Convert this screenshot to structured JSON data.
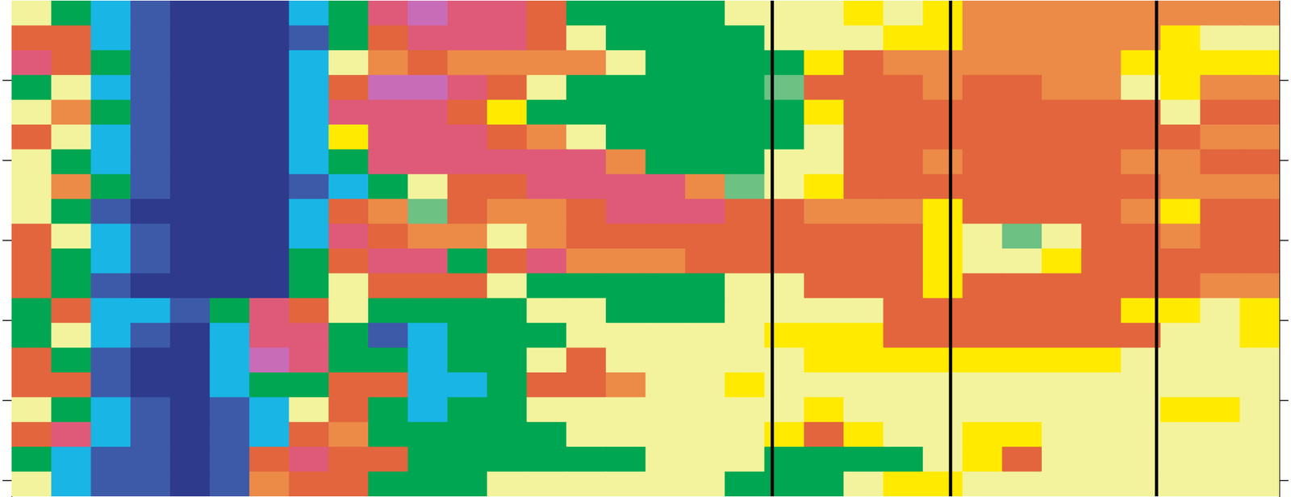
{
  "chart_data": {
    "type": "heatmap",
    "xlim": [
      0,
      32
    ],
    "ylim": [
      0,
      6.2
    ],
    "yticks": [
      1,
      2,
      3,
      4,
      5,
      6
    ],
    "tick_labels": false,
    "grid": false,
    "levels": [
      0,
      1,
      2,
      3,
      4,
      5,
      6,
      7,
      8,
      9,
      10
    ],
    "colors": [
      "#2e3a8c",
      "#3d5aa8",
      "#19b5e5",
      "#00a651",
      "#6cc183",
      "#f3f39d",
      "#ffea00",
      "#ec8a48",
      "#e2653d",
      "#df5a78",
      "#c96cb8"
    ],
    "vertical_lines": [
      19.2,
      23.7,
      28.9
    ],
    "cells": [
      [
        5,
        3,
        2,
        1,
        0,
        0,
        0,
        2,
        3,
        9,
        10,
        9,
        9,
        8,
        3,
        3,
        3,
        3,
        5,
        5,
        5,
        6,
        5,
        6,
        7,
        7,
        7,
        7,
        7,
        7,
        7,
        7
      ],
      [
        8,
        8,
        2,
        1,
        0,
        0,
        0,
        1,
        3,
        8,
        9,
        9,
        9,
        8,
        5,
        3,
        3,
        3,
        3,
        5,
        5,
        5,
        6,
        6,
        7,
        7,
        7,
        7,
        7,
        6,
        5,
        5
      ],
      [
        9,
        8,
        3,
        1,
        0,
        0,
        0,
        2,
        5,
        7,
        8,
        7,
        7,
        7,
        7,
        5,
        3,
        3,
        3,
        3,
        6,
        8,
        7,
        7,
        7,
        7,
        7,
        7,
        6,
        6,
        6,
        6
      ],
      [
        3,
        5,
        2,
        1,
        0,
        0,
        0,
        2,
        8,
        10,
        10,
        9,
        8,
        5,
        3,
        3,
        3,
        3,
        3,
        4,
        8,
        8,
        8,
        7,
        8,
        8,
        7,
        7,
        5,
        6,
        7,
        7
      ],
      [
        5,
        7,
        3,
        1,
        0,
        0,
        0,
        2,
        9,
        9,
        9,
        8,
        6,
        3,
        3,
        3,
        3,
        3,
        3,
        3,
        6,
        8,
        8,
        8,
        8,
        8,
        8,
        8,
        8,
        5,
        8,
        8
      ],
      [
        8,
        5,
        2,
        1,
        0,
        0,
        0,
        2,
        6,
        9,
        9,
        9,
        8,
        7,
        5,
        3,
        3,
        3,
        3,
        3,
        5,
        8,
        8,
        8,
        8,
        8,
        8,
        8,
        8,
        8,
        7,
        7
      ],
      [
        5,
        3,
        2,
        1,
        0,
        0,
        0,
        2,
        3,
        9,
        9,
        9,
        9,
        9,
        9,
        7,
        3,
        3,
        3,
        5,
        5,
        8,
        8,
        7,
        8,
        8,
        8,
        8,
        7,
        7,
        8,
        8
      ],
      [
        5,
        7,
        3,
        1,
        0,
        0,
        0,
        1,
        2,
        3,
        5,
        8,
        8,
        9,
        9,
        9,
        9,
        7,
        4,
        5,
        6,
        8,
        8,
        8,
        8,
        8,
        8,
        8,
        8,
        7,
        7,
        7
      ],
      [
        5,
        3,
        1,
        0,
        0,
        0,
        0,
        2,
        8,
        7,
        4,
        8,
        7,
        7,
        8,
        9,
        9,
        9,
        8,
        8,
        7,
        7,
        7,
        6,
        8,
        8,
        8,
        8,
        7,
        6,
        8,
        8
      ],
      [
        8,
        5,
        2,
        1,
        0,
        0,
        0,
        2,
        9,
        8,
        7,
        7,
        5,
        7,
        8,
        8,
        8,
        8,
        8,
        8,
        8,
        8,
        8,
        6,
        5,
        4,
        5,
        8,
        8,
        7,
        8,
        8
      ],
      [
        8,
        3,
        2,
        1,
        0,
        0,
        0,
        3,
        8,
        9,
        9,
        3,
        8,
        9,
        7,
        7,
        7,
        8,
        8,
        8,
        8,
        8,
        8,
        6,
        5,
        5,
        6,
        8,
        8,
        8,
        8,
        8
      ],
      [
        8,
        3,
        1,
        0,
        0,
        0,
        0,
        3,
        5,
        8,
        8,
        8,
        5,
        3,
        3,
        3,
        3,
        3,
        5,
        5,
        8,
        8,
        8,
        6,
        8,
        8,
        8,
        8,
        8,
        8,
        7,
        7
      ],
      [
        3,
        8,
        2,
        2,
        1,
        3,
        9,
        8,
        5,
        3,
        3,
        3,
        3,
        5,
        5,
        3,
        3,
        3,
        5,
        5,
        5,
        5,
        8,
        8,
        8,
        8,
        8,
        8,
        6,
        6,
        5,
        6
      ],
      [
        3,
        5,
        2,
        1,
        0,
        2,
        9,
        9,
        3,
        1,
        2,
        3,
        3,
        3,
        5,
        5,
        5,
        5,
        5,
        6,
        6,
        6,
        8,
        8,
        8,
        8,
        8,
        8,
        8,
        5,
        5,
        6
      ],
      [
        8,
        3,
        1,
        0,
        0,
        2,
        10,
        9,
        3,
        3,
        2,
        3,
        3,
        5,
        8,
        5,
        5,
        5,
        5,
        5,
        6,
        6,
        6,
        6,
        6,
        6,
        6,
        6,
        5,
        5,
        5,
        5
      ],
      [
        8,
        8,
        1,
        0,
        0,
        2,
        3,
        3,
        8,
        8,
        2,
        2,
        3,
        8,
        8,
        7,
        5,
        5,
        6,
        5,
        5,
        5,
        5,
        5,
        5,
        5,
        5,
        5,
        5,
        5,
        5,
        5
      ],
      [
        5,
        3,
        2,
        1,
        0,
        1,
        2,
        5,
        8,
        3,
        2,
        3,
        3,
        5,
        5,
        5,
        5,
        5,
        5,
        5,
        6,
        5,
        5,
        5,
        5,
        5,
        5,
        5,
        5,
        6,
        6,
        5
      ],
      [
        8,
        9,
        2,
        1,
        0,
        1,
        2,
        8,
        7,
        3,
        3,
        3,
        3,
        3,
        5,
        5,
        5,
        5,
        5,
        6,
        8,
        6,
        5,
        5,
        6,
        6,
        5,
        5,
        5,
        5,
        5,
        5
      ],
      [
        3,
        2,
        1,
        1,
        0,
        1,
        8,
        9,
        8,
        8,
        3,
        3,
        3,
        3,
        3,
        3,
        5,
        5,
        5,
        3,
        3,
        3,
        3,
        5,
        6,
        8,
        5,
        5,
        5,
        5,
        5,
        5
      ],
      [
        5,
        2,
        1,
        1,
        0,
        1,
        7,
        8,
        8,
        3,
        3,
        3,
        5,
        5,
        5,
        5,
        5,
        5,
        3,
        3,
        3,
        5,
        6,
        6,
        5,
        5,
        5,
        5,
        5,
        5,
        5,
        5
      ]
    ]
  }
}
